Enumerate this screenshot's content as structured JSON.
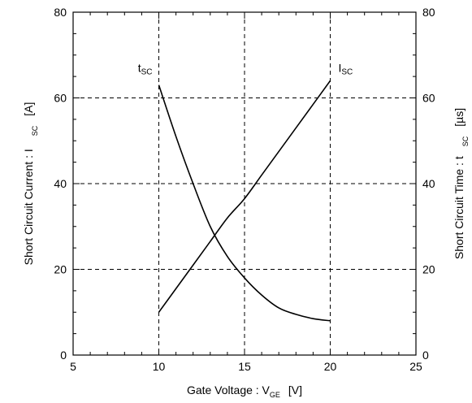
{
  "chart_data": {
    "type": "line",
    "xlabel": {
      "main": "Gate Voltage  :  V",
      "sub": "GE",
      "unit": "[V]"
    },
    "ylabel_left": {
      "main": "Short Circuit Current  :  I",
      "sub": "SC",
      "unit": "[A]"
    },
    "ylabel_right": {
      "main": "Short Circuit Time  :  t",
      "sub": "SC",
      "unit": "[µs]"
    },
    "xlim": [
      5,
      25
    ],
    "ylim_left": [
      0,
      80
    ],
    "ylim_right": [
      0,
      80
    ],
    "x_ticks": [
      5,
      10,
      15,
      20,
      25
    ],
    "y_ticks": [
      0,
      20,
      40,
      60,
      80
    ],
    "x_tick_labels": [
      "5",
      "10",
      "15",
      "20",
      "25"
    ],
    "y_tick_labels": [
      "0",
      "20",
      "40",
      "60",
      "80"
    ],
    "grid": "dashed",
    "series": [
      {
        "name_main": "t",
        "name_sub": "SC",
        "axis": "right",
        "label_anchor": [
          10,
          67
        ],
        "x": [
          10,
          11,
          12,
          13,
          14,
          15,
          16,
          17,
          18,
          19,
          20
        ],
        "y": [
          63,
          51,
          40,
          30,
          23,
          18,
          14,
          11,
          9.5,
          8.5,
          8
        ]
      },
      {
        "name_main": "I",
        "name_sub": "SC",
        "axis": "left",
        "label_anchor": [
          20,
          67
        ],
        "x": [
          10,
          11,
          12,
          13,
          14,
          15,
          16,
          17,
          18,
          19,
          20
        ],
        "y": [
          10,
          15.5,
          21,
          26.5,
          32,
          36.5,
          42,
          47.5,
          53,
          58.5,
          64
        ]
      }
    ]
  }
}
